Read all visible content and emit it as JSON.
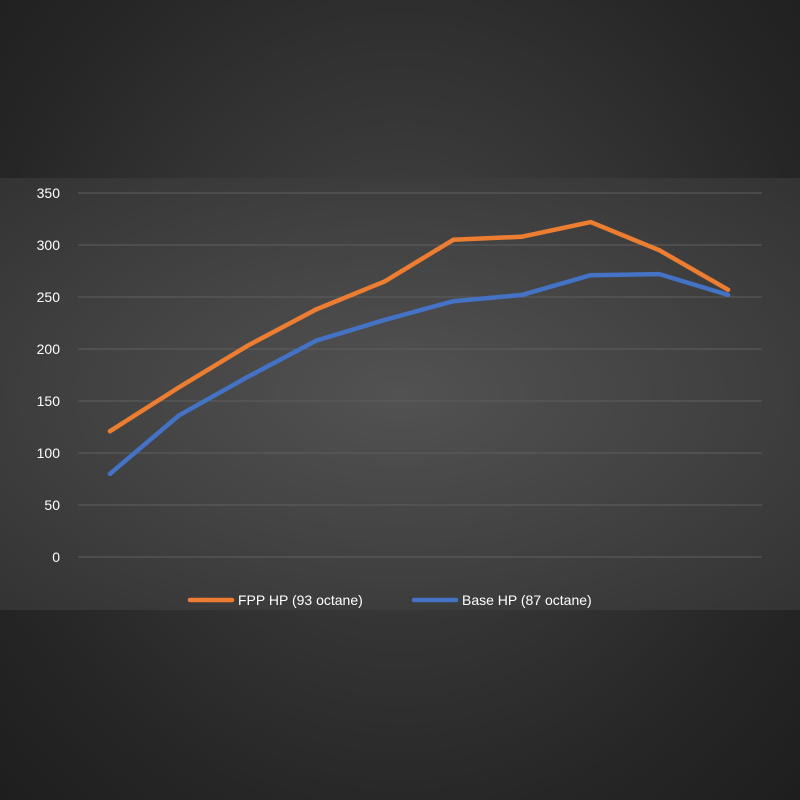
{
  "chart_data": {
    "type": "line",
    "title": "",
    "xlabel": "",
    "ylabel": "",
    "ylim": [
      0,
      350
    ],
    "yticks": [
      "350",
      "300",
      "250",
      "200",
      "150",
      "100",
      "50",
      "0"
    ],
    "x": [
      0,
      1,
      2,
      3,
      4,
      5,
      6,
      7,
      8,
      9
    ],
    "grid": true,
    "legend_position": "bottom",
    "series": [
      {
        "name": "FPP HP (93 octane)",
        "color": "#ed7d31",
        "values": [
          121,
          163,
          203,
          238,
          265,
          305,
          308,
          322,
          295,
          257
        ]
      },
      {
        "name": "Base HP (87 octane)",
        "color": "#4472c4",
        "values": [
          80,
          136,
          173,
          208,
          228,
          246,
          252,
          271,
          272,
          252
        ]
      }
    ]
  }
}
